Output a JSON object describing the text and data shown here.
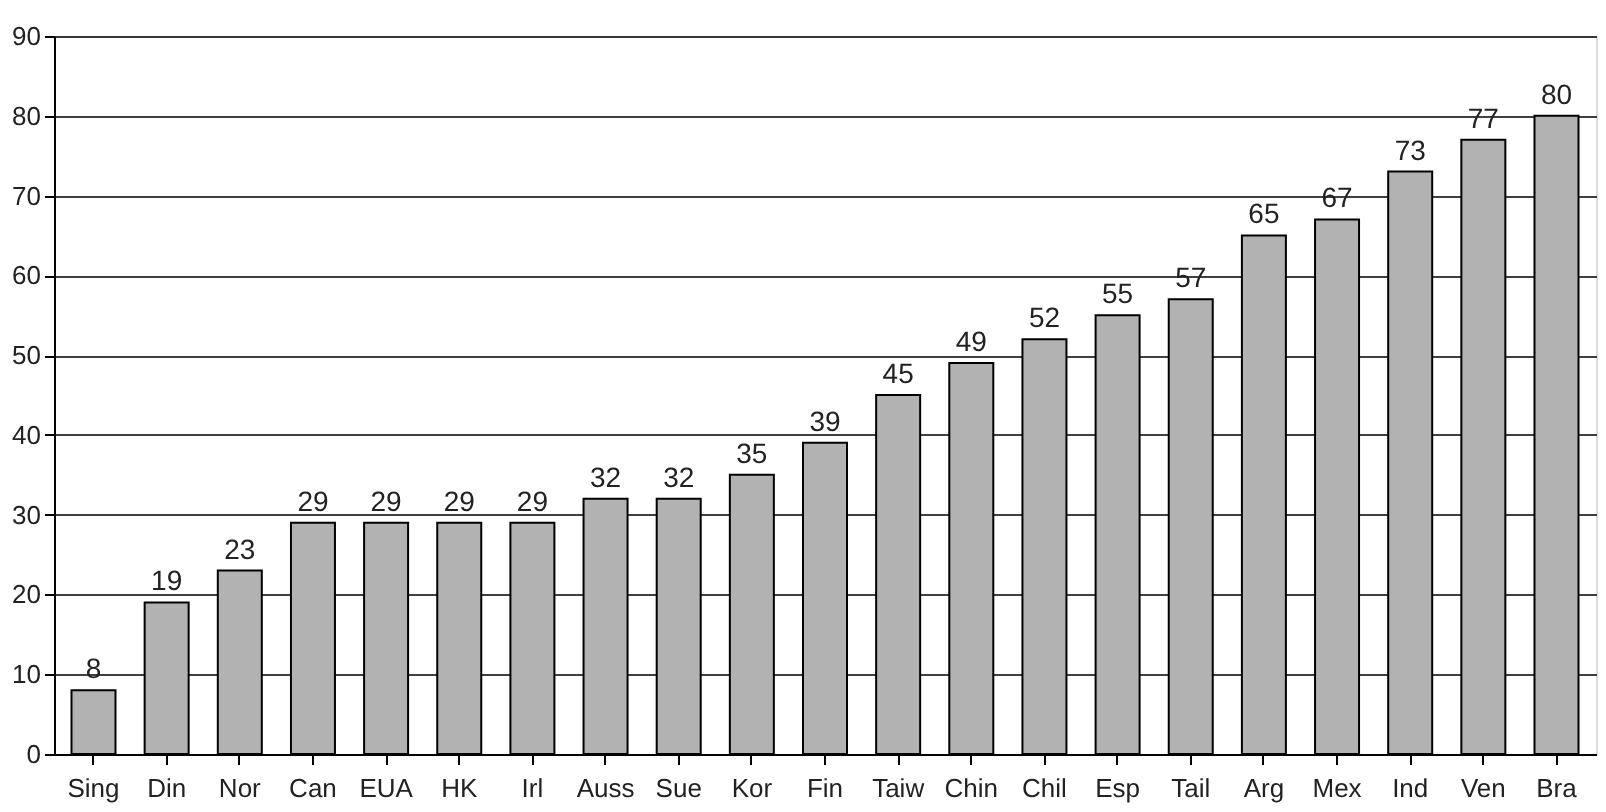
{
  "chart_data": {
    "type": "bar",
    "categories": [
      "Sing",
      "Din",
      "Nor",
      "Can",
      "EUA",
      "HK",
      "Irl",
      "Auss",
      "Sue",
      "Kor",
      "Fin",
      "Taiw",
      "Chin",
      "Chil",
      "Esp",
      "Tail",
      "Arg",
      "Mex",
      "Ind",
      "Ven",
      "Bra"
    ],
    "values": [
      8,
      19,
      23,
      29,
      29,
      29,
      29,
      32,
      32,
      35,
      39,
      45,
      49,
      52,
      55,
      57,
      65,
      67,
      73,
      77,
      80
    ],
    "color": "#b2b2b2",
    "ylim": [
      0,
      90
    ],
    "yticks": [
      0,
      10,
      20,
      30,
      40,
      50,
      60,
      70,
      80,
      90
    ],
    "grid": "y",
    "data_labels": true
  }
}
